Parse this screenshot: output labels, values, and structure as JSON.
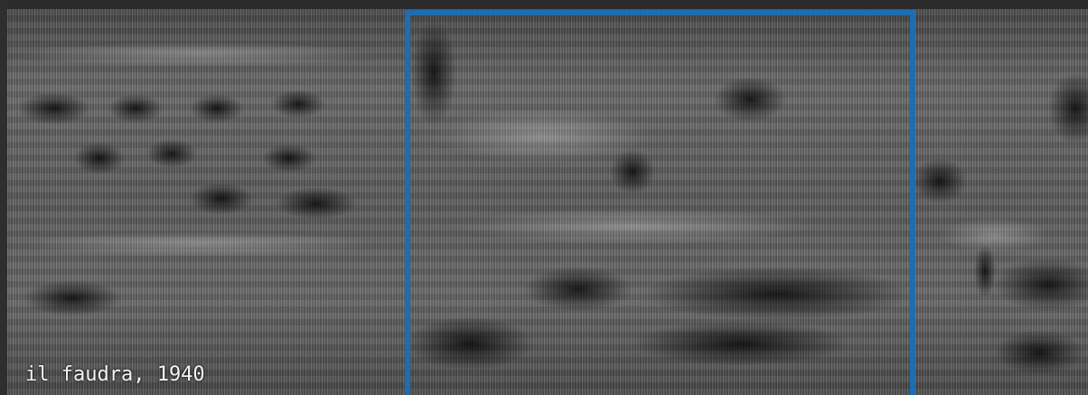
{
  "caption": "il faudra, 1940"
}
